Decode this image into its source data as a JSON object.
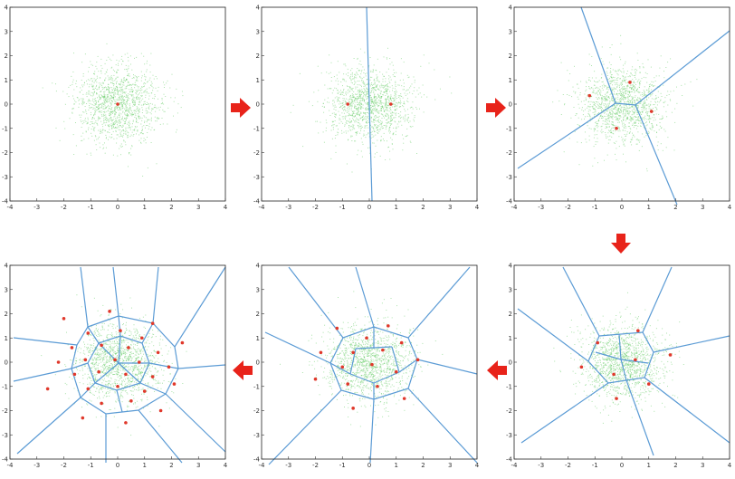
{
  "colors": {
    "points": "#66cc66",
    "centroids": "#e0382b",
    "boundaries": "#5b9bd5",
    "arrow": "#e8231a",
    "frame": "#222222"
  },
  "axis": {
    "x_ticks": [
      "-4",
      "-3",
      "-2",
      "-1",
      "0",
      "1",
      "2",
      "3",
      "4"
    ],
    "y_ticks": [
      "4",
      "3",
      "2",
      "1",
      "0",
      "-1",
      "-2",
      "-3",
      "-4"
    ],
    "range": [
      -4,
      4
    ]
  },
  "panels": [
    {
      "step": 1,
      "centroids": [
        [
          0,
          0
        ]
      ]
    },
    {
      "step": 2,
      "centroids": [
        [
          -0.8,
          0
        ],
        [
          0.8,
          0
        ]
      ]
    },
    {
      "step": 3,
      "centroids": [
        [
          -1.2,
          0.35
        ],
        [
          0.3,
          0.9
        ],
        [
          1.1,
          -0.3
        ],
        [
          -0.2,
          -1.0
        ]
      ]
    },
    {
      "step": 4,
      "centroids": [
        [
          -0.9,
          0.8
        ],
        [
          0.6,
          1.3
        ],
        [
          1.8,
          0.3
        ],
        [
          -1.5,
          -0.2
        ],
        [
          0.5,
          0.1
        ],
        [
          -0.3,
          -0.5
        ],
        [
          1.0,
          -0.9
        ],
        [
          -0.2,
          -1.5
        ]
      ]
    },
    {
      "step": 5,
      "centroids": [
        [
          -1.2,
          1.4
        ],
        [
          0.7,
          1.5
        ],
        [
          -0.1,
          1.0
        ],
        [
          -1.8,
          0.4
        ],
        [
          -0.6,
          0.4
        ],
        [
          0.5,
          0.5
        ],
        [
          1.2,
          0.8
        ],
        [
          1.8,
          0.1
        ],
        [
          -1.0,
          -0.2
        ],
        [
          0.1,
          -0.1
        ],
        [
          1.0,
          -0.4
        ],
        [
          -2.0,
          -0.7
        ],
        [
          -0.8,
          -0.9
        ],
        [
          0.3,
          -1.0
        ],
        [
          1.3,
          -1.5
        ],
        [
          -0.6,
          -1.9
        ]
      ]
    },
    {
      "step": 6,
      "centroids": [
        [
          -2.0,
          1.8
        ],
        [
          -0.3,
          2.1
        ],
        [
          1.3,
          1.6
        ],
        [
          -1.1,
          1.2
        ],
        [
          0.1,
          1.3
        ],
        [
          0.9,
          1.0
        ],
        [
          -1.7,
          0.6
        ],
        [
          -0.6,
          0.7
        ],
        [
          0.4,
          0.6
        ],
        [
          1.5,
          0.4
        ],
        [
          2.4,
          0.8
        ],
        [
          -2.2,
          0.0
        ],
        [
          -1.2,
          0.1
        ],
        [
          -0.1,
          0.1
        ],
        [
          0.8,
          0.0
        ],
        [
          1.9,
          -0.2
        ],
        [
          -1.6,
          -0.5
        ],
        [
          -0.7,
          -0.4
        ],
        [
          0.3,
          -0.5
        ],
        [
          1.3,
          -0.6
        ],
        [
          -2.6,
          -1.1
        ],
        [
          -1.1,
          -1.1
        ],
        [
          0.0,
          -1.0
        ],
        [
          1.0,
          -1.2
        ],
        [
          2.1,
          -0.9
        ],
        [
          -0.6,
          -1.7
        ],
        [
          0.5,
          -1.6
        ],
        [
          -1.3,
          -2.3
        ],
        [
          0.3,
          -2.5
        ],
        [
          1.6,
          -2.0
        ]
      ]
    }
  ],
  "arrows": [
    {
      "direction": "right"
    },
    {
      "direction": "right"
    },
    {
      "direction": "down"
    },
    {
      "direction": "left"
    },
    {
      "direction": "left"
    }
  ]
}
